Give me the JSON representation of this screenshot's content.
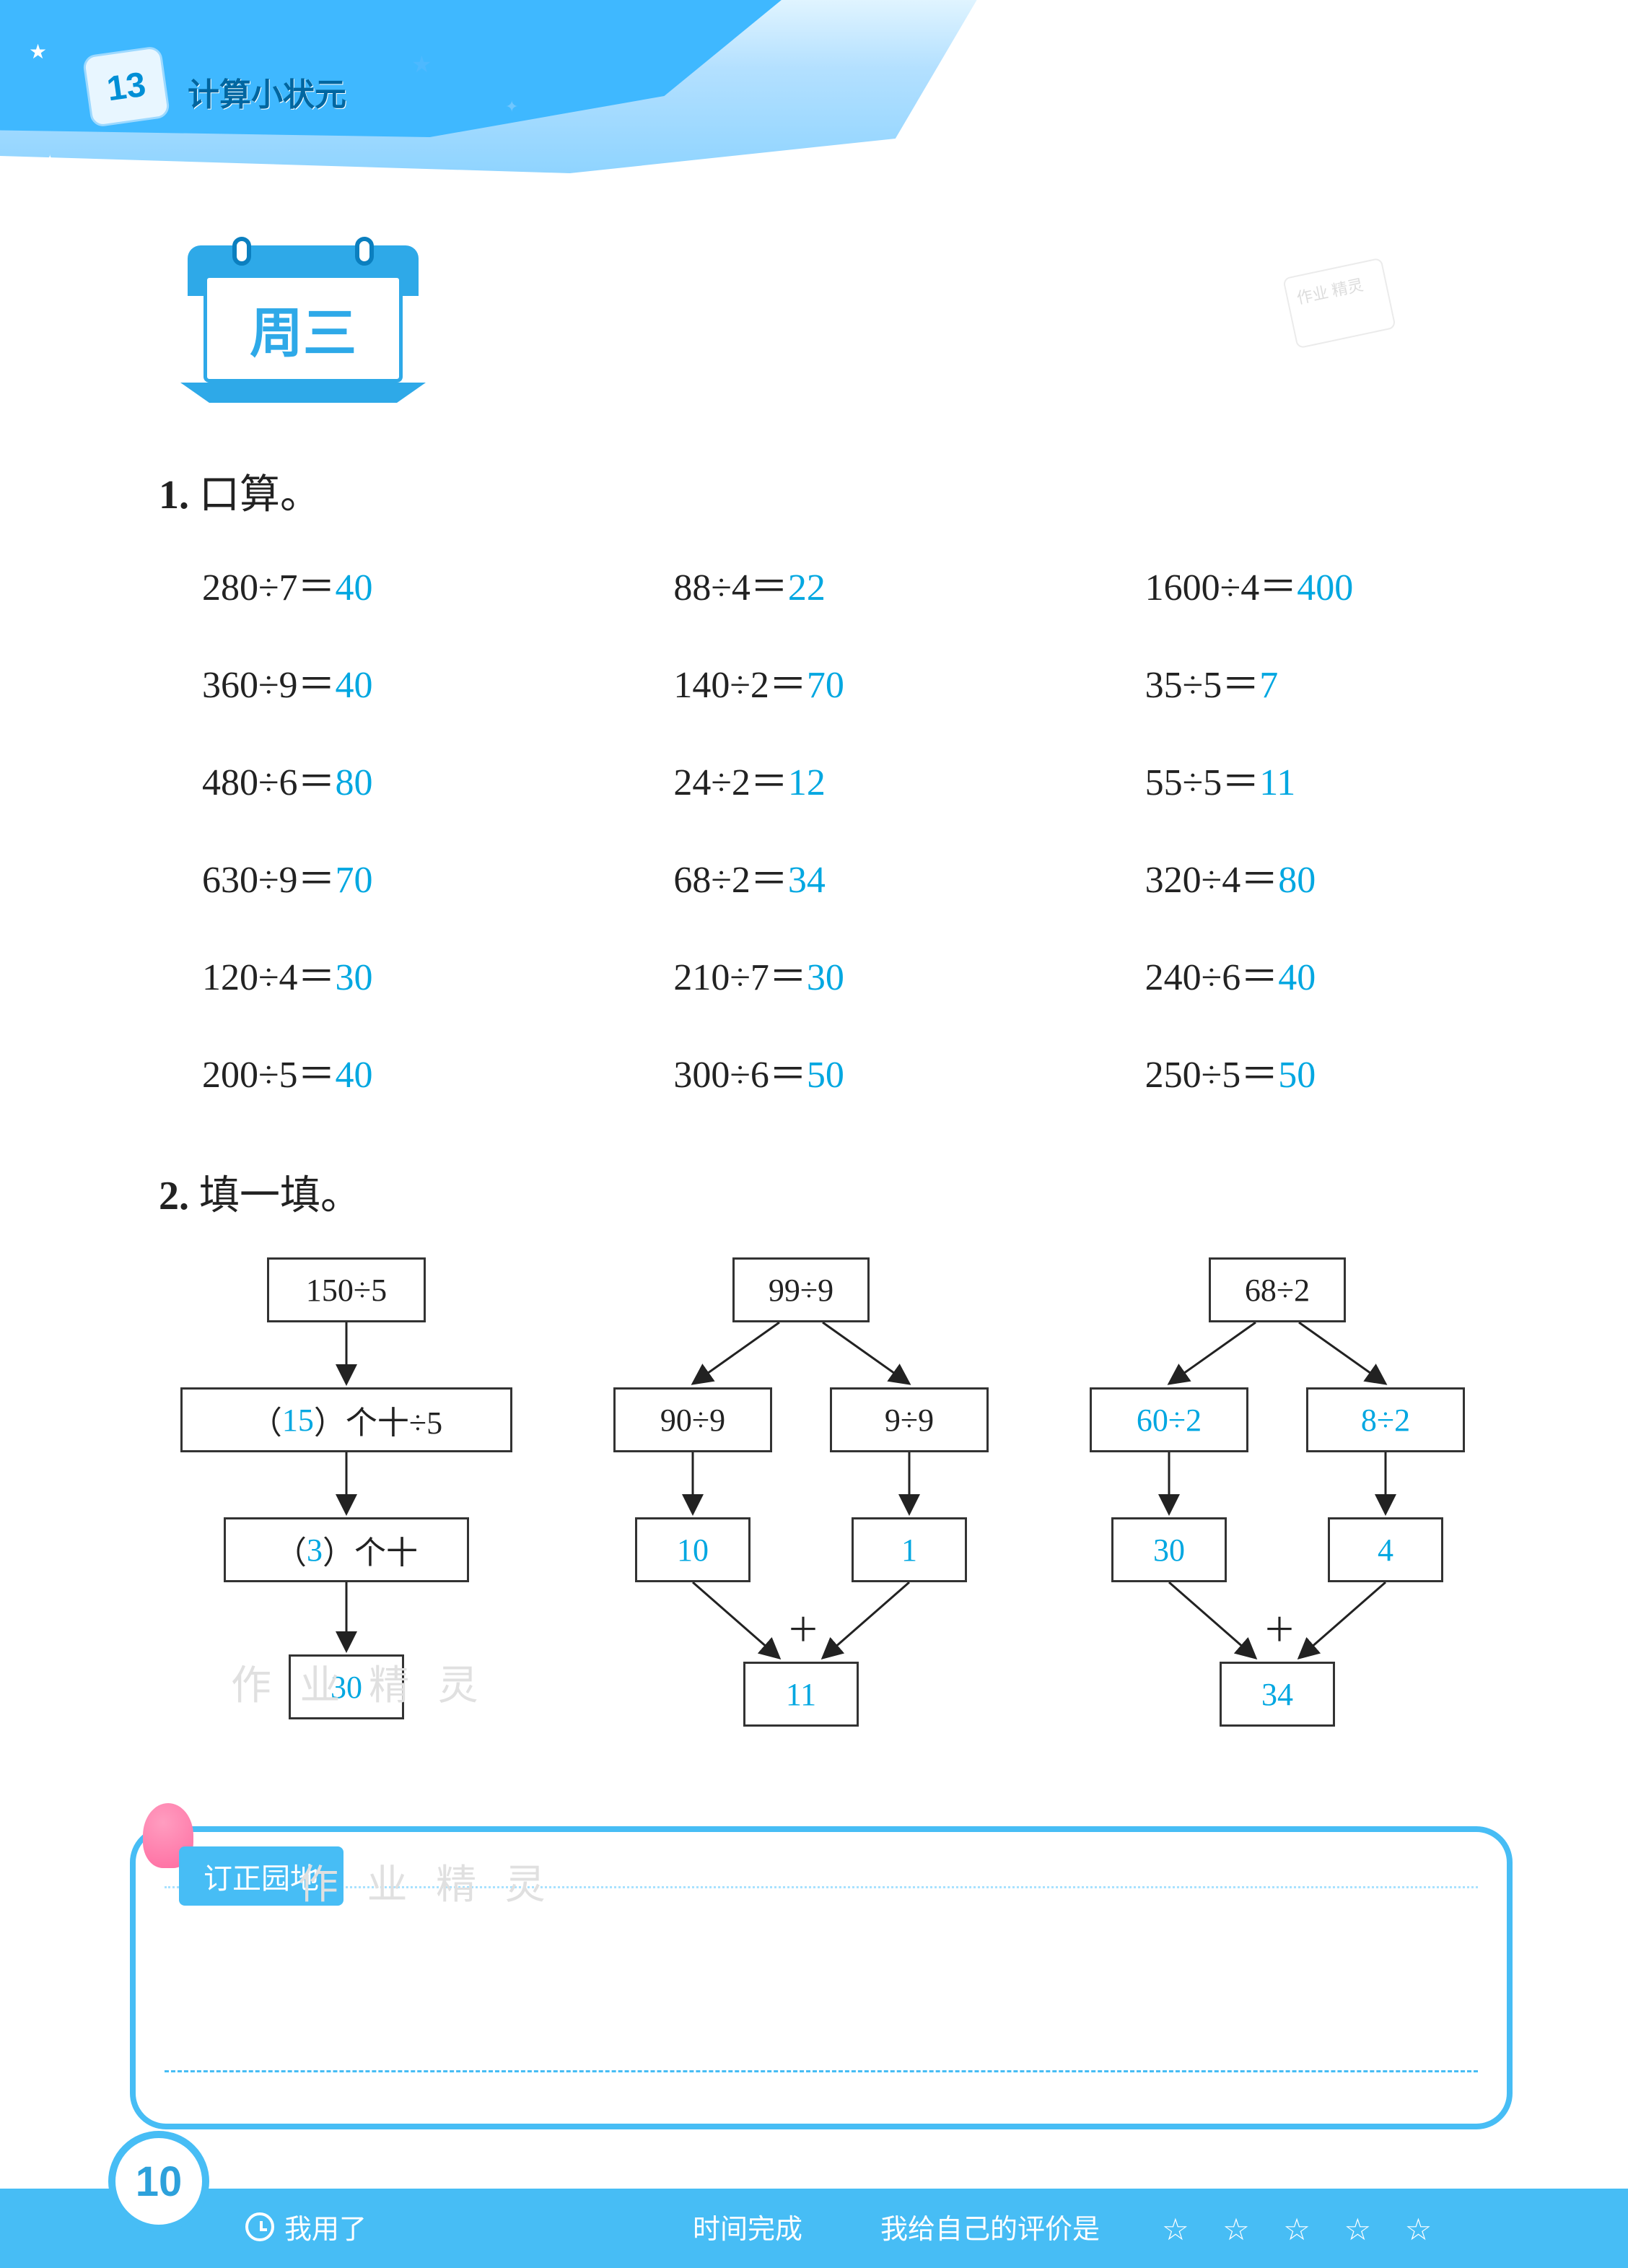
{
  "header": {
    "book_title": "计算小状元",
    "dice_label": "13"
  },
  "day_badge": "周三",
  "stamp_text": "作业\n精灵",
  "section1": {
    "number": "1.",
    "title": "口算。",
    "grid": [
      [
        {
          "q": "280÷7＝",
          "a": "40"
        },
        {
          "q": "88÷4＝",
          "a": "22"
        },
        {
          "q": "1600÷4＝",
          "a": "400"
        }
      ],
      [
        {
          "q": "360÷9＝",
          "a": "40"
        },
        {
          "q": "140÷2＝",
          "a": "70"
        },
        {
          "q": "35÷5＝",
          "a": "7"
        }
      ],
      [
        {
          "q": "480÷6＝",
          "a": "80"
        },
        {
          "q": "24÷2＝",
          "a": "12"
        },
        {
          "q": "55÷5＝",
          "a": "11"
        }
      ],
      [
        {
          "q": "630÷9＝",
          "a": "70"
        },
        {
          "q": "68÷2＝",
          "a": "34"
        },
        {
          "q": "320÷4＝",
          "a": "80"
        }
      ],
      [
        {
          "q": "120÷4＝",
          "a": "30"
        },
        {
          "q": "210÷7＝",
          "a": "30"
        },
        {
          "q": "240÷6＝",
          "a": "40"
        }
      ],
      [
        {
          "q": "200÷5＝",
          "a": "40"
        },
        {
          "q": "300÷6＝",
          "a": "50"
        },
        {
          "q": "250÷5＝",
          "a": "50"
        }
      ]
    ]
  },
  "section2": {
    "number": "2.",
    "title": "填一填。",
    "flowA": {
      "b1": "150÷5",
      "b2_pre": "（ ",
      "b2_ans": "15",
      "b2_post": " ）个十÷5",
      "b3_pre": "（ ",
      "b3_ans": "3",
      "b3_post": " ）个十",
      "b4": "30"
    },
    "flowB": {
      "top": "99÷9",
      "l1": "90÷9",
      "r1": "9÷9",
      "l2": "10",
      "r2": "1",
      "plus": "＋",
      "sum": "11"
    },
    "flowC": {
      "top": "68÷2",
      "l1": "60÷2",
      "r1": "8÷2",
      "l2": "30",
      "r2": "4",
      "plus": "＋",
      "sum": "34"
    }
  },
  "panel": {
    "tag": "订正园地"
  },
  "watermark": "作 业 精 灵",
  "footer": {
    "page": "10",
    "used": "我用了",
    "done": "时间完成",
    "rate_label": "我给自己的评价是",
    "stars": "☆ ☆ ☆ ☆ ☆"
  },
  "colors": {
    "answer": "#00a7e1",
    "text": "#222222",
    "theme": "#47bdf5",
    "theme_dark": "#2ea9e8"
  }
}
